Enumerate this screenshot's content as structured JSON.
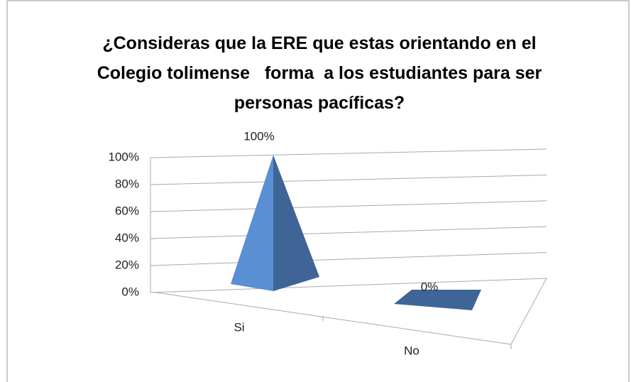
{
  "chart_data": {
    "type": "pyramid3d",
    "title": "¿Consideras que la ERE que estas orientando en el Colegio tolimense   forma  a los estudiantes para ser personas pacíficas?",
    "categories": [
      "Si",
      "No"
    ],
    "values": [
      100,
      0
    ],
    "value_labels": [
      "100%",
      "0%"
    ],
    "color": "#5b8fd4",
    "ylim": [
      0,
      100
    ],
    "yticks": [
      {
        "value": 0,
        "label": "0%"
      },
      {
        "value": 20,
        "label": "20%"
      },
      {
        "value": 40,
        "label": "40%"
      },
      {
        "value": 60,
        "label": "60%"
      },
      {
        "value": 80,
        "label": "80%"
      },
      {
        "value": 100,
        "label": "100%"
      }
    ],
    "grid": true
  }
}
